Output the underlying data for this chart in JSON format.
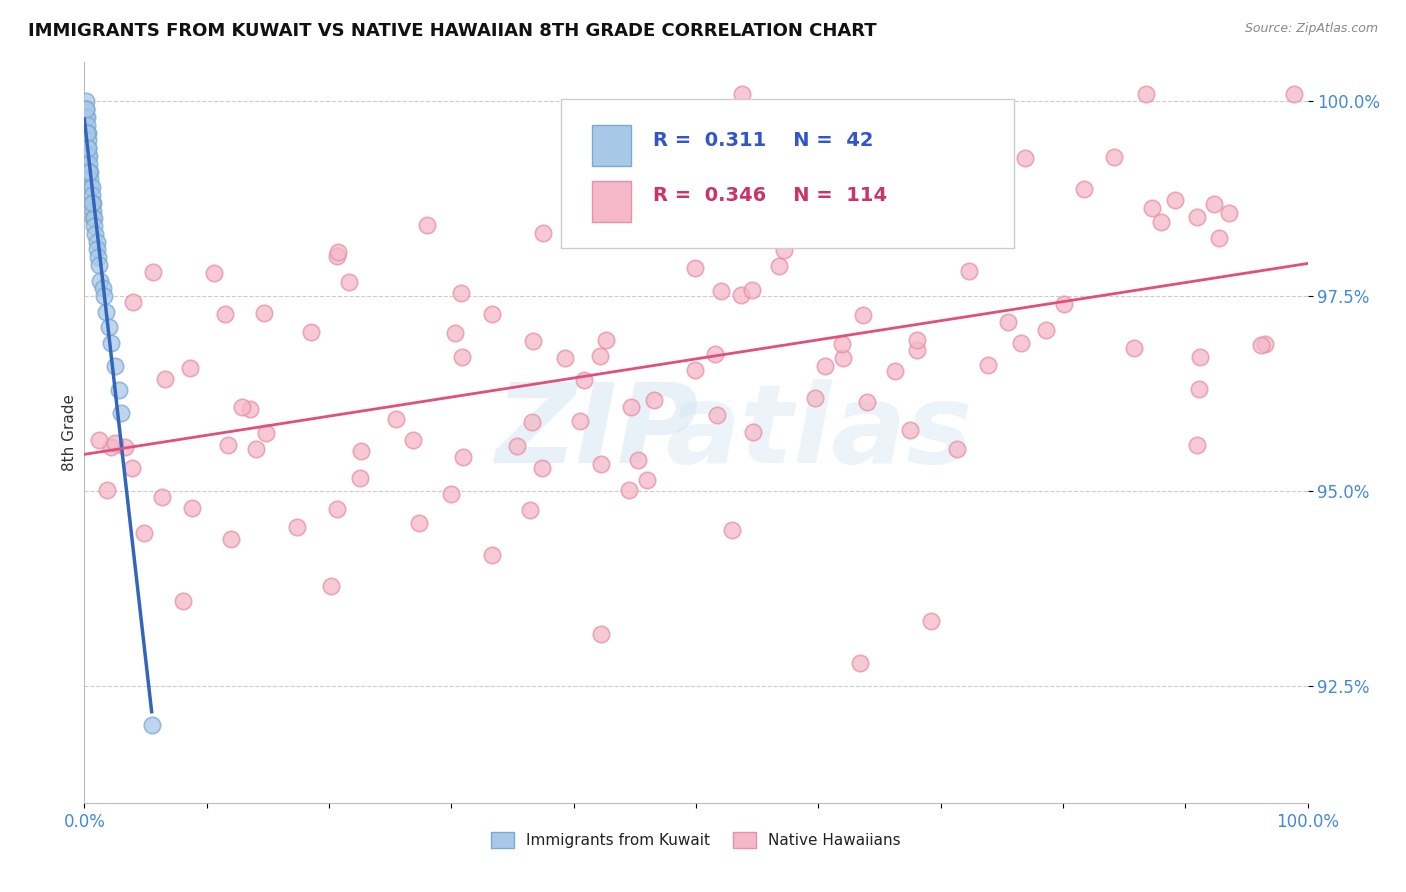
{
  "title": "IMMIGRANTS FROM KUWAIT VS NATIVE HAWAIIAN 8TH GRADE CORRELATION CHART",
  "source": "Source: ZipAtlas.com",
  "ylabel": "8th Grade",
  "xlim": [
    0.0,
    1.0
  ],
  "ylim": [
    0.91,
    1.005
  ],
  "yticks": [
    0.925,
    0.95,
    0.975,
    1.0
  ],
  "ytick_labels": [
    "92.5%",
    "95.0%",
    "97.5%",
    "100.0%"
  ],
  "xtick_labels_show": [
    "0.0%",
    "100.0%"
  ],
  "legend_R_blue": "0.311",
  "legend_N_blue": "42",
  "legend_R_pink": "0.346",
  "legend_N_pink": "114",
  "blue_color": "#a8c8e8",
  "blue_edge_color": "#7aaad0",
  "pink_color": "#f5b8c8",
  "pink_edge_color": "#e890a8",
  "blue_line_color": "#3366bb",
  "pink_line_color": "#e0507a",
  "watermark_color": "#d0e4f0",
  "background_color": "#ffffff",
  "grid_color": "#cccccc",
  "ytick_color": "#4488dd",
  "xtick_color": "#4488dd",
  "title_color": "#111111",
  "source_color": "#888888",
  "legend_text_color_blue": "#3355cc",
  "legend_text_color_pink": "#cc3366",
  "bottom_legend_text_color": "#222222"
}
